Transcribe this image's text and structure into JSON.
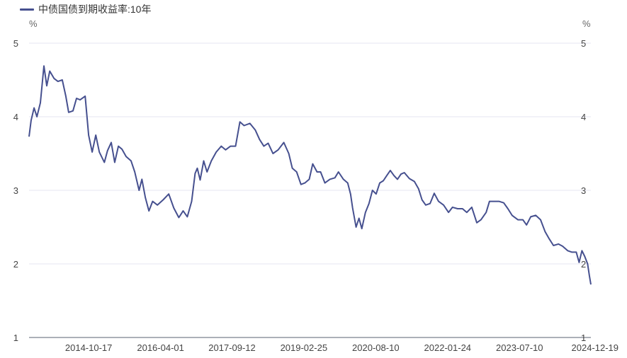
{
  "chart_data": {
    "type": "line",
    "legend": {
      "position": "top-left"
    },
    "grid": true,
    "colors": {
      "line": "#46508f",
      "grid": "#e6e6f2",
      "axis": "#5a6070"
    },
    "y_unit_left": "%",
    "y_unit_right": "%",
    "ylim": [
      1,
      5
    ],
    "yticks": [
      "1",
      "2",
      "3",
      "4",
      "5"
    ],
    "xlim": [
      "2013-08-02",
      "2024-12-19"
    ],
    "xticks": [
      "2014-10-17",
      "2016-04-01",
      "2017-09-12",
      "2019-02-25",
      "2020-08-10",
      "2022-01-24",
      "2023-07-10",
      "2024-12-19"
    ],
    "series": [
      {
        "name": "中债国债到期收益率:10年",
        "points": [
          [
            "2013-08-02",
            3.73
          ],
          [
            "2013-08-17",
            3.95
          ],
          [
            "2013-09-08",
            4.12
          ],
          [
            "2013-09-29",
            4.0
          ],
          [
            "2013-10-25",
            4.19
          ],
          [
            "2013-11-20",
            4.69
          ],
          [
            "2013-12-11",
            4.42
          ],
          [
            "2014-01-02",
            4.62
          ],
          [
            "2014-02-03",
            4.52
          ],
          [
            "2014-03-04",
            4.48
          ],
          [
            "2014-04-05",
            4.5
          ],
          [
            "2014-05-01",
            4.28
          ],
          [
            "2014-05-22",
            4.06
          ],
          [
            "2014-06-23",
            4.08
          ],
          [
            "2014-07-19",
            4.25
          ],
          [
            "2014-08-15",
            4.23
          ],
          [
            "2014-09-21",
            4.28
          ],
          [
            "2014-10-17",
            3.75
          ],
          [
            "2014-11-12",
            3.52
          ],
          [
            "2014-12-09",
            3.75
          ],
          [
            "2015-01-04",
            3.52
          ],
          [
            "2015-02-10",
            3.38
          ],
          [
            "2015-03-06",
            3.54
          ],
          [
            "2015-04-02",
            3.65
          ],
          [
            "2015-04-28",
            3.38
          ],
          [
            "2015-05-25",
            3.6
          ],
          [
            "2015-06-20",
            3.56
          ],
          [
            "2015-07-21",
            3.46
          ],
          [
            "2015-08-27",
            3.4
          ],
          [
            "2015-09-23",
            3.25
          ],
          [
            "2015-10-25",
            3.0
          ],
          [
            "2015-11-15",
            3.15
          ],
          [
            "2015-12-11",
            2.9
          ],
          [
            "2016-01-06",
            2.72
          ],
          [
            "2016-02-02",
            2.85
          ],
          [
            "2016-03-09",
            2.8
          ],
          [
            "2016-04-20",
            2.87
          ],
          [
            "2016-06-01",
            2.95
          ],
          [
            "2016-07-08",
            2.76
          ],
          [
            "2016-08-14",
            2.63
          ],
          [
            "2016-09-15",
            2.72
          ],
          [
            "2016-10-16",
            2.64
          ],
          [
            "2016-11-17",
            2.85
          ],
          [
            "2016-12-13",
            3.23
          ],
          [
            "2016-12-29",
            3.3
          ],
          [
            "2017-01-19",
            3.14
          ],
          [
            "2017-02-14",
            3.4
          ],
          [
            "2017-03-11",
            3.25
          ],
          [
            "2017-04-12",
            3.4
          ],
          [
            "2017-05-18",
            3.52
          ],
          [
            "2017-06-24",
            3.6
          ],
          [
            "2017-07-26",
            3.55
          ],
          [
            "2017-09-01",
            3.6
          ],
          [
            "2017-10-08",
            3.6
          ],
          [
            "2017-11-09",
            3.93
          ],
          [
            "2017-12-10",
            3.88
          ],
          [
            "2018-01-22",
            3.91
          ],
          [
            "2018-03-03",
            3.82
          ],
          [
            "2018-04-04",
            3.69
          ],
          [
            "2018-05-05",
            3.6
          ],
          [
            "2018-06-06",
            3.64
          ],
          [
            "2018-07-12",
            3.5
          ],
          [
            "2018-08-19",
            3.55
          ],
          [
            "2018-09-30",
            3.65
          ],
          [
            "2018-11-06",
            3.5
          ],
          [
            "2018-12-02",
            3.3
          ],
          [
            "2019-01-03",
            3.25
          ],
          [
            "2019-02-04",
            3.08
          ],
          [
            "2019-03-05",
            3.1
          ],
          [
            "2019-04-06",
            3.15
          ],
          [
            "2019-05-02",
            3.36
          ],
          [
            "2019-06-03",
            3.25
          ],
          [
            "2019-06-29",
            3.25
          ],
          [
            "2019-07-31",
            3.1
          ],
          [
            "2019-09-06",
            3.15
          ],
          [
            "2019-10-13",
            3.17
          ],
          [
            "2019-11-08",
            3.25
          ],
          [
            "2019-12-15",
            3.15
          ],
          [
            "2020-01-16",
            3.1
          ],
          [
            "2020-02-06",
            2.95
          ],
          [
            "2020-02-21",
            2.76
          ],
          [
            "2020-03-18",
            2.5
          ],
          [
            "2020-04-08",
            2.62
          ],
          [
            "2020-04-29",
            2.48
          ],
          [
            "2020-05-26",
            2.7
          ],
          [
            "2020-06-21",
            2.82
          ],
          [
            "2020-07-17",
            3.0
          ],
          [
            "2020-08-13",
            2.95
          ],
          [
            "2020-09-09",
            3.1
          ],
          [
            "2020-10-05",
            3.13
          ],
          [
            "2020-10-31",
            3.2
          ],
          [
            "2020-11-26",
            3.27
          ],
          [
            "2020-12-23",
            3.2
          ],
          [
            "2021-01-18",
            3.15
          ],
          [
            "2021-02-13",
            3.22
          ],
          [
            "2021-03-10",
            3.24
          ],
          [
            "2021-04-16",
            3.16
          ],
          [
            "2021-05-23",
            3.12
          ],
          [
            "2021-06-23",
            3.02
          ],
          [
            "2021-07-19",
            2.87
          ],
          [
            "2021-08-15",
            2.8
          ],
          [
            "2021-09-16",
            2.82
          ],
          [
            "2021-10-17",
            2.96
          ],
          [
            "2021-11-18",
            2.85
          ],
          [
            "2021-12-25",
            2.8
          ],
          [
            "2022-01-31",
            2.7
          ],
          [
            "2022-03-01",
            2.77
          ],
          [
            "2022-04-08",
            2.75
          ],
          [
            "2022-05-14",
            2.75
          ],
          [
            "2022-06-15",
            2.7
          ],
          [
            "2022-07-22",
            2.77
          ],
          [
            "2022-08-28",
            2.56
          ],
          [
            "2022-09-28",
            2.6
          ],
          [
            "2022-11-05",
            2.7
          ],
          [
            "2022-11-30",
            2.85
          ],
          [
            "2023-01-07",
            2.85
          ],
          [
            "2023-02-08",
            2.85
          ],
          [
            "2023-03-15",
            2.83
          ],
          [
            "2023-04-15",
            2.75
          ],
          [
            "2023-05-16",
            2.66
          ],
          [
            "2023-06-28",
            2.6
          ],
          [
            "2023-08-04",
            2.6
          ],
          [
            "2023-08-31",
            2.53
          ],
          [
            "2023-10-01",
            2.64
          ],
          [
            "2023-11-07",
            2.66
          ],
          [
            "2023-12-13",
            2.6
          ],
          [
            "2024-01-15",
            2.44
          ],
          [
            "2024-02-15",
            2.34
          ],
          [
            "2024-03-17",
            2.25
          ],
          [
            "2024-04-23",
            2.27
          ],
          [
            "2024-05-24",
            2.24
          ],
          [
            "2024-06-30",
            2.18
          ],
          [
            "2024-08-01",
            2.16
          ],
          [
            "2024-09-02",
            2.16
          ],
          [
            "2024-09-23",
            2.02
          ],
          [
            "2024-10-14",
            2.18
          ],
          [
            "2024-11-04",
            2.1
          ],
          [
            "2024-11-25",
            2.0
          ],
          [
            "2024-12-08",
            1.84
          ],
          [
            "2024-12-19",
            1.72
          ]
        ]
      }
    ]
  }
}
